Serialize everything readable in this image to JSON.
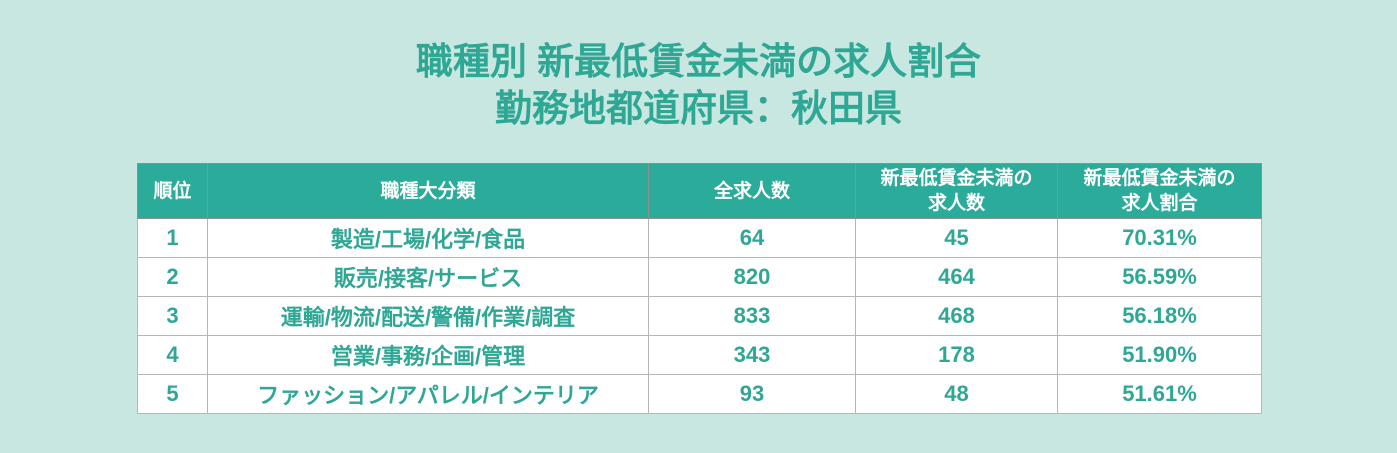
{
  "colors": {
    "page_bg": "#c9e7e1",
    "header_bg": "#2bac9b",
    "header_text": "#ffffff",
    "accent_text": "#2fa795",
    "row_bg": "#ffffff",
    "header_border": "#8f8f8f",
    "cell_border": "#b6b6b6"
  },
  "title": {
    "line1": "職種別 新最低賃金未満の求人割合",
    "line2": "勤務地都道府県：秋田県"
  },
  "table": {
    "headers": [
      "順位",
      "職種大分類",
      "全求人数",
      "新最低賃金未満の\n求人数",
      "新最低賃金未満の\n求人割合"
    ]
  },
  "chart_data": {
    "type": "table",
    "title": "職種別 新最低賃金未満の求人割合",
    "subtitle": "勤務地都道府県：秋田県",
    "columns": [
      "順位",
      "職種大分類",
      "全求人数",
      "新最低賃金未満の求人数",
      "新最低賃金未満の求人割合"
    ],
    "rows": [
      [
        "1",
        "製造/工場/化学/食品",
        "64",
        "45",
        "70.31%"
      ],
      [
        "2",
        "販売/接客/サービス",
        "820",
        "464",
        "56.59%"
      ],
      [
        "3",
        "運輸/物流/配送/警備/作業/調査",
        "833",
        "468",
        "56.18%"
      ],
      [
        "4",
        "営業/事務/企画/管理",
        "343",
        "178",
        "51.90%"
      ],
      [
        "5",
        "ファッション/アパレル/インテリア",
        "93",
        "48",
        "51.61%"
      ]
    ]
  }
}
